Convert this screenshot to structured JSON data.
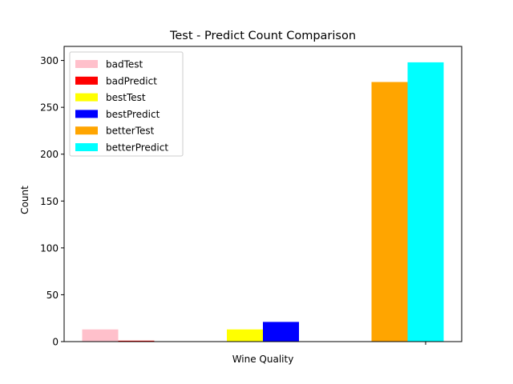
{
  "chart_data": {
    "type": "bar",
    "title": "Test - Predict Count Comparison",
    "xlabel": "Wine Quality",
    "ylabel": "Count",
    "ylim": [
      0,
      315
    ],
    "yticks": [
      0,
      50,
      100,
      150,
      200,
      250,
      300
    ],
    "grid": false,
    "legend_position": "top-left",
    "series": [
      {
        "name": "badTest",
        "group": 0,
        "slot": 0,
        "value": 13,
        "color": "#ffc0cb"
      },
      {
        "name": "badPredict",
        "group": 0,
        "slot": 1,
        "value": 1,
        "color": "#ff0000"
      },
      {
        "name": "bestTest",
        "group": 1,
        "slot": 0,
        "value": 13,
        "color": "#ffff00"
      },
      {
        "name": "bestPredict",
        "group": 1,
        "slot": 1,
        "value": 21,
        "color": "#0000ff"
      },
      {
        "name": "betterTest",
        "group": 2,
        "slot": 0,
        "value": 277,
        "color": "#ffa500"
      },
      {
        "name": "betterPredict",
        "group": 2,
        "slot": 1,
        "value": 298,
        "color": "#00ffff"
      }
    ]
  }
}
